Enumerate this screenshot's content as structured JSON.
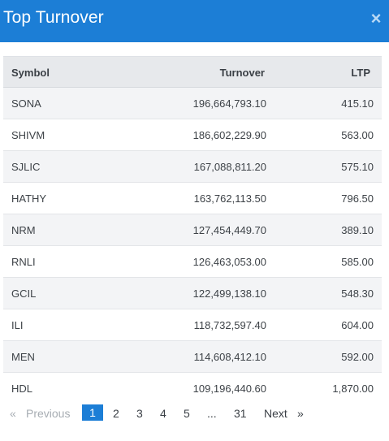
{
  "modal": {
    "title": "Top Turnover",
    "close_icon": "×"
  },
  "table": {
    "headers": {
      "symbol": "Symbol",
      "turnover": "Turnover",
      "ltp": "LTP"
    },
    "rows": [
      {
        "symbol": "SONA",
        "turnover": "196,664,793.10",
        "ltp": "415.10"
      },
      {
        "symbol": "SHIVM",
        "turnover": "186,602,229.90",
        "ltp": "563.00"
      },
      {
        "symbol": "SJLIC",
        "turnover": "167,088,811.20",
        "ltp": "575.10"
      },
      {
        "symbol": "HATHY",
        "turnover": "163,762,113.50",
        "ltp": "796.50"
      },
      {
        "symbol": "NRM",
        "turnover": "127,454,449.70",
        "ltp": "389.10"
      },
      {
        "symbol": "RNLI",
        "turnover": "126,463,053.00",
        "ltp": "585.00"
      },
      {
        "symbol": "GCIL",
        "turnover": "122,499,138.10",
        "ltp": "548.30"
      },
      {
        "symbol": "ILI",
        "turnover": "118,732,597.40",
        "ltp": "604.00"
      },
      {
        "symbol": "MEN",
        "turnover": "114,608,412.10",
        "ltp": "592.00"
      },
      {
        "symbol": "HDL",
        "turnover": "109,196,440.60",
        "ltp": "1,870.00"
      }
    ]
  },
  "pagination": {
    "prev_arrow": "«",
    "previous": "Previous",
    "pages": [
      "1",
      "2",
      "3",
      "4",
      "5"
    ],
    "ellipsis": "...",
    "last_page": "31",
    "next": "Next",
    "next_arrow": "»",
    "current_page": "1"
  },
  "colors": {
    "header_bg": "#1c7ed6",
    "active_page_bg": "#1c7ed6"
  }
}
